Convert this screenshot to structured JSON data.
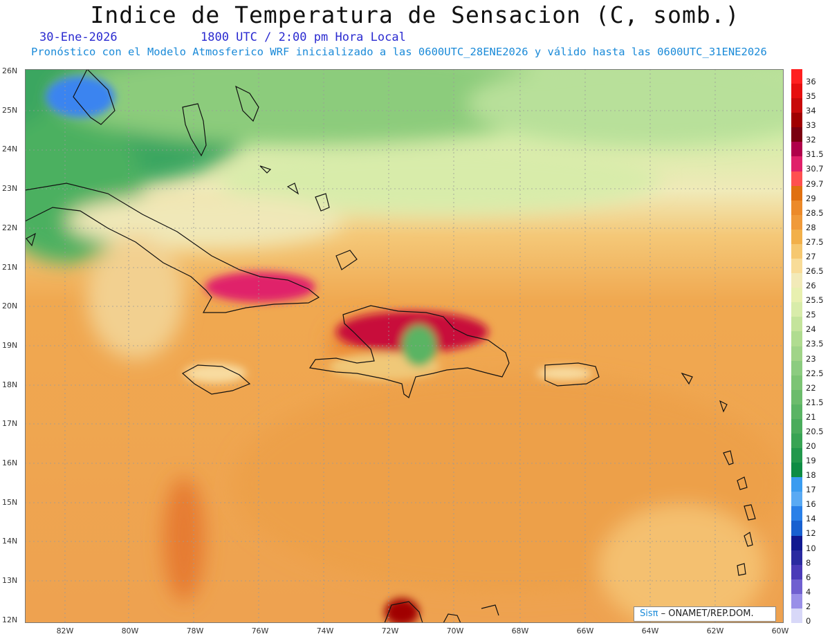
{
  "title": "Indice de Temperatura de Sensacion (C, somb.)",
  "date": "30-Ene-2026",
  "time": "1800 UTC / 2:00 pm Hora Local",
  "forecast_text": "Pronóstico con el Modelo Atmosferico WRF inicializado a las 0600UTC_28ENE2026 y válido hasta las  0600UTC_31ENE2026",
  "lat_labels": [
    "26N",
    "25N",
    "24N",
    "23N",
    "22N",
    "21N",
    "20N",
    "19N",
    "18N",
    "17N",
    "16N",
    "15N",
    "14N",
    "13N",
    "12N"
  ],
  "lon_labels": [
    "82W",
    "80W",
    "78W",
    "76W",
    "74W",
    "72W",
    "70W",
    "68W",
    "66W",
    "64W",
    "62W",
    "60W"
  ],
  "legend_labels": [
    "36",
    "35",
    "34",
    "33",
    "32",
    "31.5",
    "30.7",
    "29.7",
    "29",
    "28.5",
    "28",
    "27.5",
    "27",
    "26.5",
    "26",
    "25.5",
    "25",
    "24",
    "23.5",
    "23",
    "22.5",
    "22",
    "21.5",
    "21",
    "20.5",
    "20",
    "19",
    "18",
    "17",
    "16",
    "14",
    "12",
    "10",
    "8",
    "6",
    "4",
    "2",
    "0"
  ],
  "legend_colors": [
    "#ff2020",
    "#e60f0f",
    "#c80a0a",
    "#a00000",
    "#7a0010",
    "#b0004a",
    "#e0206a",
    "#ff5050",
    "#e07010",
    "#ec8a2a",
    "#f09a3a",
    "#f2b04a",
    "#f6c870",
    "#f8dc98",
    "#f2eab8",
    "#e8f0b0",
    "#d8ecaa",
    "#c4e49c",
    "#b0dc90",
    "#a0d488",
    "#8ccc80",
    "#7cc474",
    "#6cbc6c",
    "#5ab464",
    "#4aac5c",
    "#38a454",
    "#22984c",
    "#0e8c44",
    "#3a9cf0",
    "#5aaaf4",
    "#2a80e8",
    "#1860d0",
    "#101890",
    "#2a2aa0",
    "#4a3ab8",
    "#7060d0",
    "#9a90e8",
    "#d8d8f8"
  ],
  "badge_brand": "Sisπ",
  "badge_text": " – ONAMET/REP.DOM."
}
